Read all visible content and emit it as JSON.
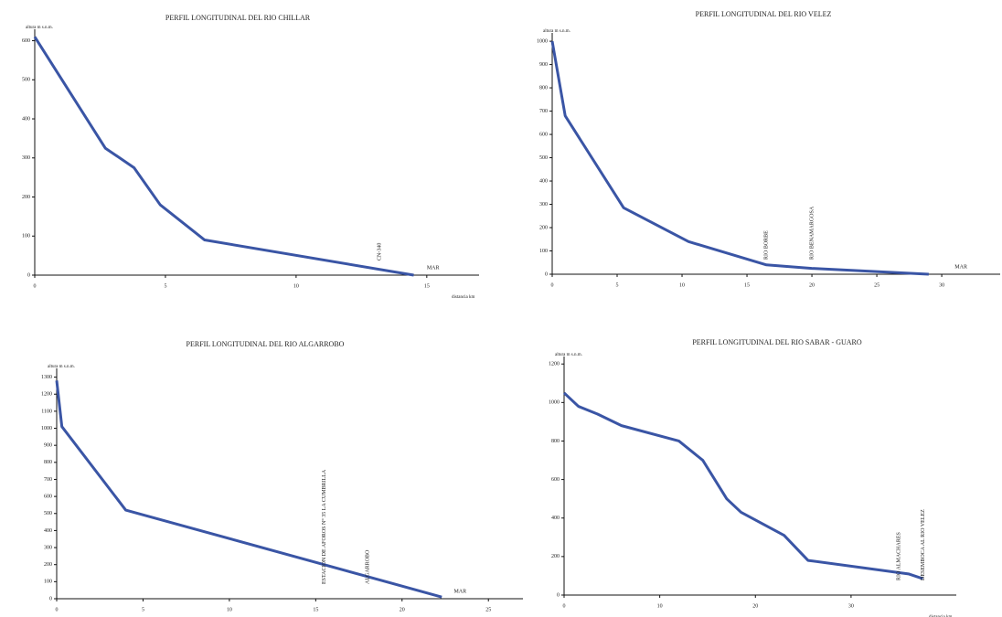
{
  "chart_data": [
    {
      "type": "line",
      "title": "PERFIL LONGITUDINAL DEL RIO CHILLAR",
      "y_label": "altura m s.n.m.",
      "x_label": "distancia km",
      "series": [
        {
          "name": "Rio Chillar",
          "color": "#3a55a5",
          "x": [
            0,
            2.7,
            3.8,
            4.8,
            6.5,
            14.5
          ],
          "values": [
            610,
            325,
            275,
            180,
            90,
            0
          ]
        }
      ],
      "xlim": [
        0,
        17
      ],
      "ylim": [
        0,
        620
      ],
      "xticks": [
        0,
        5,
        10,
        15
      ],
      "yticks": [
        0,
        100,
        200,
        300,
        400,
        500,
        600
      ],
      "annotations": [
        {
          "text": "CN-340",
          "x": 13.2,
          "vertical": true
        },
        {
          "text": "MAR",
          "x": 15,
          "vertical": false
        }
      ]
    },
    {
      "type": "line",
      "title": "PERFIL LONGITUDINAL DEL RIO VELEZ",
      "y_label": "altura m s.n.m.",
      "series": [
        {
          "name": "Rio Velez",
          "color": "#3a55a5",
          "x": [
            0,
            1,
            5.5,
            10.5,
            16.5,
            20,
            29
          ],
          "values": [
            1000,
            680,
            285,
            140,
            40,
            25,
            0
          ]
        }
      ],
      "xlim": [
        0,
        34.5
      ],
      "ylim": [
        0,
        1020
      ],
      "xticks": [
        0,
        5,
        10,
        15,
        20,
        25,
        30
      ],
      "yticks": [
        0,
        100,
        200,
        300,
        400,
        500,
        600,
        700,
        800,
        900,
        1000
      ],
      "annotations": [
        {
          "text": "RIO BORBE",
          "x": 16.5,
          "vertical": true
        },
        {
          "text": "RIO BENAMARGOSA",
          "x": 20,
          "vertical": true
        },
        {
          "text": "MAR",
          "x": 31,
          "vertical": false
        }
      ]
    },
    {
      "type": "line",
      "title": "PERFIL LONGITUDINAL DEL RIO ALGARROBO",
      "y_label": "altura m s.n.m.",
      "series": [
        {
          "name": "Rio Algarrobo",
          "color": "#3a55a5",
          "x": [
            0,
            0.3,
            4,
            22.3
          ],
          "values": [
            1280,
            1010,
            520,
            10
          ]
        }
      ],
      "xlim": [
        0,
        27
      ],
      "ylim": [
        0,
        1330
      ],
      "xticks": [
        0,
        5,
        10,
        15,
        20,
        25
      ],
      "yticks": [
        0,
        100,
        200,
        300,
        400,
        500,
        600,
        700,
        800,
        900,
        1000,
        1100,
        1200,
        1300
      ],
      "annotations": [
        {
          "text": "ESTACION DE AFOROS N° 35 LA CUMBRILLA",
          "x": 15.5,
          "vertical": true
        },
        {
          "text": "ALGARROBO",
          "x": 18,
          "vertical": true
        },
        {
          "text": "MAR",
          "x": 23,
          "vertical": false
        }
      ]
    },
    {
      "type": "line",
      "title": "PERFIL LONGITUDINAL DEL RIO SABAR - GUARO",
      "y_label": "altura m s.n.m.",
      "x_label": "distancia km",
      "series": [
        {
          "name": "Rio Sabar - Guaro",
          "color": "#3a55a5",
          "x": [
            0,
            1.5,
            3.5,
            6,
            12,
            14.5,
            17,
            18.5,
            23,
            25.5,
            36,
            37.5
          ],
          "values": [
            1050,
            980,
            940,
            880,
            800,
            700,
            500,
            430,
            310,
            180,
            110,
            85
          ]
        }
      ],
      "xlim": [
        0,
        41
      ],
      "ylim": [
        0,
        1220
      ],
      "xticks": [
        0,
        10,
        20,
        30
      ],
      "yticks": [
        0,
        200,
        400,
        600,
        800,
        1000,
        1200
      ],
      "annotations": [
        {
          "text": "RIO ALMACHARES",
          "x": 35,
          "vertical": true
        },
        {
          "text": "DESEMBOCA AL RIO VELEZ",
          "x": 37.5,
          "vertical": true
        }
      ]
    }
  ]
}
